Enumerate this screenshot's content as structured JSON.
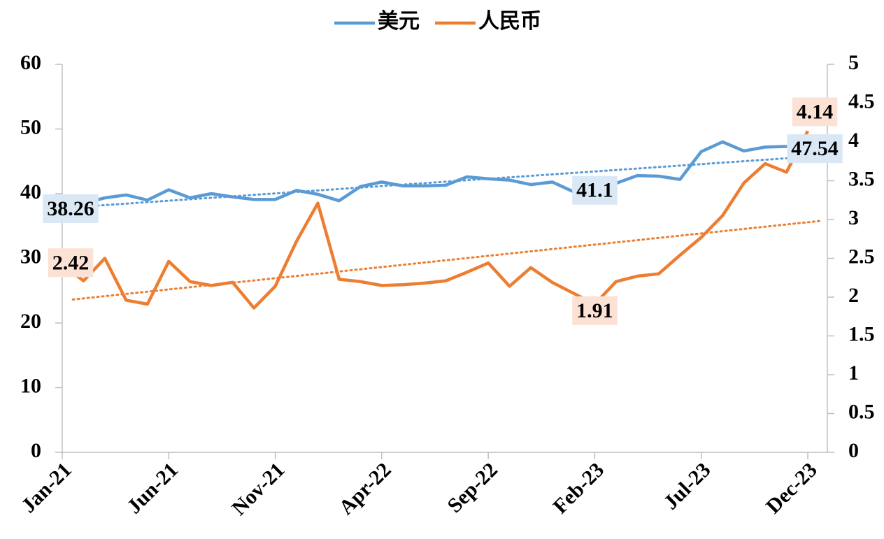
{
  "chart_data": {
    "type": "line",
    "categories": [
      "Jan-21",
      null,
      null,
      null,
      null,
      "Jun-21",
      null,
      null,
      null,
      null,
      "Nov-21",
      null,
      null,
      null,
      null,
      "Apr-22",
      null,
      null,
      null,
      null,
      "Sep-22",
      null,
      null,
      null,
      null,
      "Feb-23",
      null,
      null,
      null,
      null,
      "Jul-23",
      null,
      null,
      null,
      null,
      "Dec-23"
    ],
    "series": [
      {
        "name": "美元",
        "color": "#5b9bd5",
        "axis": "y",
        "values": [
          38.26,
          38.5,
          39.35,
          39.8,
          39.0,
          40.6,
          39.35,
          40.0,
          39.5,
          39.1,
          39.1,
          40.5,
          39.9,
          38.9,
          41.1,
          41.8,
          41.2,
          41.2,
          41.3,
          42.6,
          42.3,
          42.1,
          41.4,
          41.8,
          40.3,
          41.1,
          41.6,
          42.8,
          42.7,
          42.2,
          46.5,
          48.0,
          46.6,
          47.2,
          47.3,
          47.54
        ]
      },
      {
        "name": "人民币",
        "color": "#ed7d31",
        "axis": "y2",
        "values": [
          2.42,
          2.21,
          2.5,
          1.96,
          1.91,
          2.46,
          2.2,
          2.15,
          2.19,
          1.86,
          2.14,
          2.72,
          3.21,
          2.23,
          2.2,
          2.15,
          2.16,
          2.18,
          2.21,
          2.32,
          2.44,
          2.14,
          2.38,
          2.19,
          2.05,
          1.91,
          2.2,
          2.27,
          2.3,
          2.54,
          2.77,
          3.05,
          3.47,
          3.72,
          3.61,
          4.14
        ]
      }
    ],
    "labeled_points": [
      0,
      25,
      35
    ],
    "trendline": true,
    "ylim": [
      0,
      60
    ],
    "yticks": [
      0,
      10,
      20,
      30,
      40,
      50,
      60
    ],
    "y2lim": [
      0,
      5
    ],
    "y2ticks": [
      0,
      0.5,
      1,
      1.5,
      2,
      2.5,
      3,
      3.5,
      4,
      4.5,
      5
    ],
    "legend": "top"
  }
}
